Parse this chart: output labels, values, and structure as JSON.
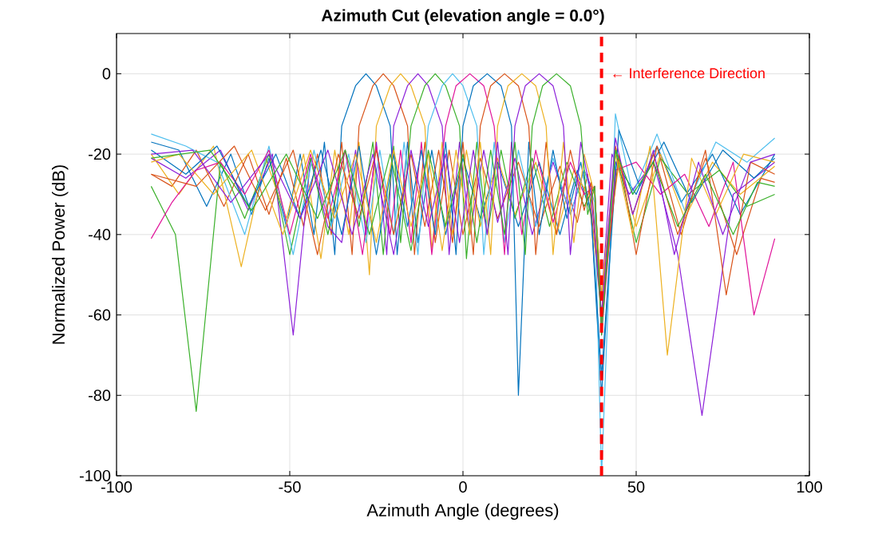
{
  "chart_data": {
    "type": "line",
    "title": "Azimuth Cut (elevation angle = 0.0°)",
    "xlabel": "Azimuth Angle (degrees)",
    "ylabel": "Normalized Power (dB)",
    "xlim": [
      -100,
      100
    ],
    "xticks": [
      -100,
      -50,
      0,
      50,
      100
    ],
    "ylim": [
      -100,
      10
    ],
    "yticks": [
      -100,
      -80,
      -60,
      -40,
      -20,
      0
    ],
    "grid": true,
    "marker": "none",
    "line_style": "solid",
    "ref_lines": [
      {
        "axis": "x",
        "value": 40,
        "label": "← Interference Direction",
        "color": "#ff0000",
        "line_style": "dashed"
      }
    ],
    "series": [
      {
        "color": "#0072bd",
        "x": [
          -90,
          -82,
          -74,
          -67,
          -61,
          -56,
          -51,
          -47,
          -43,
          -40,
          -37,
          -35,
          -31,
          -28,
          -25,
          -21,
          -19,
          -16,
          -13,
          -9,
          -5,
          0,
          5,
          10,
          16,
          22,
          28,
          33,
          37,
          40,
          44,
          50,
          56,
          63,
          72,
          80,
          90
        ],
        "values": [
          -17,
          -19,
          -33,
          -20,
          -35,
          -21,
          -38,
          -20,
          -40,
          -17,
          -45,
          -13,
          -3,
          0,
          -3,
          -13,
          -45,
          -17,
          -42,
          -19,
          -40,
          -21,
          -36,
          -22,
          -38,
          -22,
          -40,
          -24,
          -35,
          -80,
          -22,
          -30,
          -18,
          -32,
          -20,
          -35,
          -20
        ]
      },
      {
        "color": "#d95319",
        "x": [
          -90,
          -84,
          -77,
          -69,
          -62,
          -56,
          -51,
          -46,
          -42,
          -38,
          -35,
          -32,
          -30,
          -26,
          -23,
          -20,
          -16,
          -14,
          -11,
          -8,
          -4,
          0,
          5,
          10,
          16,
          22,
          28,
          33,
          36,
          40,
          44,
          49,
          55,
          62,
          70,
          79,
          86,
          90
        ],
        "values": [
          -25,
          -28,
          -19,
          -33,
          -20,
          -35,
          -21,
          -38,
          -20,
          -40,
          -17,
          -45,
          -13,
          -3,
          0,
          -3,
          -13,
          -45,
          -17,
          -42,
          -19,
          -40,
          -21,
          -36,
          -22,
          -38,
          -23,
          -37,
          -25,
          -60,
          -18,
          -35,
          -20,
          -40,
          -21,
          -45,
          -26,
          -27
        ]
      },
      {
        "color": "#edb120",
        "x": [
          -90,
          -82,
          -72,
          -64,
          -57,
          -51,
          -46,
          -41,
          -37,
          -33,
          -30,
          -27,
          -25,
          -21,
          -18,
          -15,
          -11,
          -9,
          -6,
          -3,
          1,
          5,
          10,
          15,
          21,
          27,
          32,
          36,
          40,
          45,
          50,
          57,
          64,
          72,
          80,
          90
        ],
        "values": [
          -20,
          -30,
          -18,
          -48,
          -21,
          -36,
          -20,
          -46,
          -19,
          -40,
          -17,
          -50,
          -13,
          -3,
          0,
          -3,
          -13,
          -44,
          -17,
          -40,
          -19,
          -38,
          -21,
          -35,
          -22,
          -40,
          -24,
          -30,
          -55,
          -22,
          -38,
          -20,
          -36,
          -22,
          -30,
          -23
        ]
      },
      {
        "color": "#8c1fd9",
        "x": [
          -90,
          -80,
          -70,
          -62,
          -55,
          -49,
          -44,
          -39,
          -35,
          -31,
          -28,
          -25,
          -22,
          -20,
          -16,
          -13,
          -10,
          -6,
          -4,
          -1,
          2,
          6,
          10,
          15,
          20,
          26,
          31,
          35,
          38,
          40,
          43,
          48,
          55,
          62,
          69,
          78,
          90
        ],
        "values": [
          -21,
          -26,
          -19,
          -34,
          -20,
          -65,
          -21,
          -38,
          -42,
          -19,
          -40,
          -17,
          -45,
          -13,
          -3,
          0,
          -3,
          -13,
          -45,
          -17,
          -40,
          -19,
          -37,
          -21,
          -40,
          -22,
          -35,
          -24,
          -30,
          -56,
          -20,
          -30,
          -22,
          -45,
          -85,
          -30,
          -22
        ]
      },
      {
        "color": "#3ab02a",
        "x": [
          -90,
          -83,
          -77,
          -70,
          -63,
          -56,
          -50,
          -44,
          -39,
          -34,
          -30,
          -26,
          -23,
          -20,
          -18,
          -15,
          -11,
          -8,
          -5,
          -1,
          1,
          4,
          7,
          11,
          15,
          20,
          25,
          30,
          35,
          38,
          40,
          44,
          50,
          57,
          65,
          74,
          82,
          90
        ],
        "values": [
          -28,
          -40,
          -84,
          -22,
          -36,
          -20,
          -45,
          -21,
          -40,
          -19,
          -38,
          -17,
          -45,
          -18,
          -42,
          -13,
          -3,
          0,
          -3,
          -13,
          -46,
          -17,
          -40,
          -19,
          -36,
          -21,
          -38,
          -22,
          -33,
          -28,
          -62,
          -19,
          -42,
          -21,
          -30,
          -24,
          -33,
          -30
        ]
      },
      {
        "color": "#4dbeee",
        "x": [
          -90,
          -80,
          -71,
          -63,
          -56,
          -49,
          -43,
          -38,
          -33,
          -28,
          -24,
          -20,
          -17,
          -13,
          -10,
          -6,
          -3,
          0,
          4,
          6,
          9,
          12,
          16,
          21,
          26,
          31,
          35,
          38,
          40,
          44,
          49,
          56,
          64,
          73,
          82,
          90
        ],
        "values": [
          -15,
          -18,
          -22,
          -40,
          -18,
          -45,
          -19,
          -38,
          -20,
          -42,
          -19,
          -40,
          -17,
          -45,
          -13,
          -3,
          0,
          -3,
          -13,
          -45,
          -17,
          -42,
          -19,
          -38,
          -21,
          -35,
          -24,
          -32,
          -100,
          -10,
          -30,
          -15,
          -34,
          -17,
          -22,
          -16
        ]
      },
      {
        "color": "#e0139a",
        "x": [
          -90,
          -84,
          -77,
          -70,
          -63,
          -56,
          -50,
          -44,
          -39,
          -34,
          -29,
          -25,
          -21,
          -18,
          -15,
          -12,
          -9,
          -5,
          -2,
          2,
          6,
          9,
          12,
          14,
          17,
          21,
          26,
          31,
          35,
          38,
          40,
          44,
          50,
          57,
          64,
          71,
          78,
          84,
          90
        ],
        "values": [
          -41,
          -32,
          -24,
          -22,
          -30,
          -19,
          -40,
          -20,
          -36,
          -19,
          -45,
          -18,
          -40,
          -19,
          -42,
          -17,
          -45,
          -13,
          -3,
          0,
          -3,
          -13,
          -45,
          -17,
          -40,
          -19,
          -37,
          -22,
          -30,
          -28,
          -65,
          -24,
          -22,
          -30,
          -25,
          -38,
          -22,
          -60,
          -41
        ]
      },
      {
        "color": "#0072bd",
        "x": [
          -90,
          -80,
          -71,
          -62,
          -54,
          -47,
          -41,
          -35,
          -30,
          -25,
          -20,
          -16,
          -12,
          -8,
          -5,
          -2,
          0,
          3,
          7,
          11,
          14,
          16,
          19,
          22,
          26,
          30,
          34,
          37,
          40,
          45,
          51,
          58,
          66,
          75,
          84,
          90
        ],
        "values": [
          -19,
          -25,
          -18,
          -33,
          -20,
          -36,
          -19,
          -40,
          -18,
          -45,
          -20,
          -38,
          -19,
          -40,
          -17,
          -45,
          -13,
          -3,
          0,
          -3,
          -13,
          -80,
          -17,
          -40,
          -19,
          -36,
          -22,
          -35,
          -75,
          -14,
          -28,
          -17,
          -32,
          -19,
          -26,
          -21
        ]
      },
      {
        "color": "#d95319",
        "x": [
          -90,
          -77,
          -66,
          -57,
          -49,
          -42,
          -36,
          -30,
          -25,
          -20,
          -15,
          -11,
          -7,
          -3,
          0,
          3,
          5,
          8,
          12,
          16,
          19,
          21,
          24,
          27,
          31,
          35,
          37,
          40,
          45,
          50,
          56,
          63,
          70,
          76,
          83,
          90
        ],
        "values": [
          -25,
          -28,
          -18,
          -34,
          -19,
          -45,
          -20,
          -36,
          -19,
          -40,
          -20,
          -38,
          -19,
          -42,
          -17,
          -45,
          -13,
          -3,
          0,
          -3,
          -13,
          -45,
          -17,
          -40,
          -19,
          -34,
          -27,
          -60,
          -20,
          -45,
          -18,
          -40,
          -19,
          -55,
          -22,
          -25
        ]
      },
      {
        "color": "#edb120",
        "x": [
          -90,
          -82,
          -72,
          -61,
          -52,
          -44,
          -37,
          -31,
          -25,
          -20,
          -15,
          -10,
          -6,
          -2,
          2,
          5,
          8,
          10,
          13,
          17,
          21,
          24,
          26,
          29,
          32,
          35,
          38,
          40,
          44,
          49,
          54,
          59,
          66,
          73,
          81,
          90
        ],
        "values": [
          -22,
          -20,
          -30,
          -19,
          -40,
          -19,
          -36,
          -20,
          -42,
          -19,
          -38,
          -20,
          -44,
          -19,
          -40,
          -17,
          -45,
          -13,
          -3,
          0,
          -3,
          -13,
          -45,
          -17,
          -42,
          -20,
          -30,
          -55,
          -20,
          -40,
          -18,
          -70,
          -21,
          -35,
          -20,
          -22
        ]
      },
      {
        "color": "#8c1fd9",
        "x": [
          -90,
          -78,
          -67,
          -56,
          -47,
          -39,
          -32,
          -26,
          -20,
          -15,
          -10,
          -5,
          -1,
          3,
          7,
          10,
          13,
          15,
          18,
          22,
          26,
          29,
          31,
          34,
          37,
          40,
          44,
          49,
          55,
          61,
          68,
          75,
          83,
          90
        ],
        "values": [
          -20,
          -19,
          -32,
          -20,
          -36,
          -19,
          -40,
          -20,
          -45,
          -19,
          -38,
          -20,
          -42,
          -19,
          -40,
          -17,
          -45,
          -13,
          -3,
          0,
          -3,
          -13,
          -45,
          -17,
          -30,
          -60,
          -16,
          -35,
          -19,
          -45,
          -22,
          -40,
          -22,
          -20
        ]
      },
      {
        "color": "#3ab02a",
        "x": [
          -90,
          -73,
          -61,
          -51,
          -42,
          -34,
          -27,
          -21,
          -15,
          -10,
          -5,
          0,
          4,
          8,
          12,
          15,
          18,
          20,
          23,
          27,
          31,
          34,
          36,
          38,
          40,
          44,
          49,
          55,
          62,
          70,
          78,
          85,
          90
        ],
        "values": [
          -21,
          -19,
          -34,
          -20,
          -36,
          -19,
          -40,
          -20,
          -44,
          -19,
          -38,
          -20,
          -42,
          -19,
          -40,
          -17,
          -45,
          -13,
          -3,
          0,
          -3,
          -13,
          -35,
          -28,
          -65,
          -19,
          -30,
          -22,
          -38,
          -25,
          -40,
          -27,
          -28
        ]
      }
    ]
  }
}
